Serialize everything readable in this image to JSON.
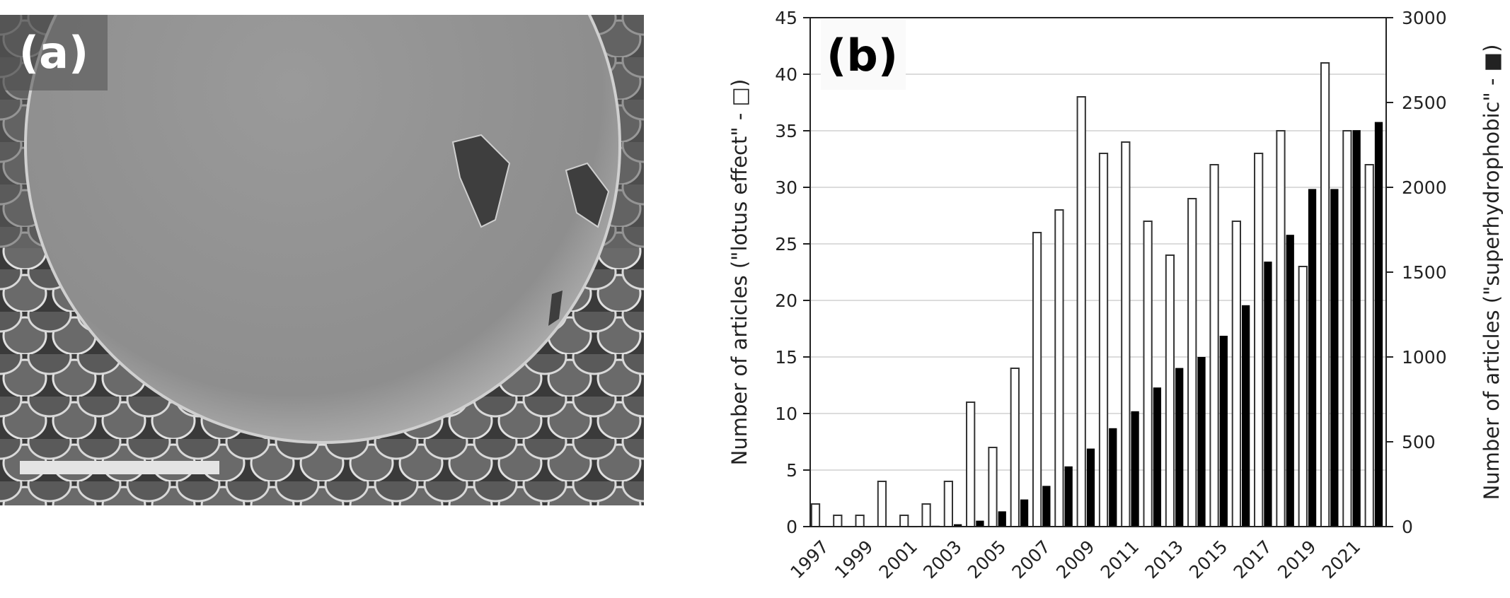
{
  "panel_a": {
    "label": "(a)",
    "description": "SEM image of a sphere resting on a micro-papillae surface",
    "scale_bar": true
  },
  "panel_b": {
    "label": "(b)"
  },
  "chart_data": {
    "type": "bar",
    "title": "",
    "panel_label": "(b)",
    "categories": [
      "1997",
      "1998",
      "1999",
      "2000",
      "2001",
      "2002",
      "2003",
      "2004",
      "2005",
      "2006",
      "2007",
      "2008",
      "2009",
      "2010",
      "2011",
      "2012",
      "2013",
      "2014",
      "2015",
      "2016",
      "2017",
      "2018",
      "2019",
      "2020",
      "2021",
      "2022"
    ],
    "x_tick_labels": [
      "1997",
      "1999",
      "2001",
      "2003",
      "2005",
      "2007",
      "2009",
      "2011",
      "2013",
      "2015",
      "2017",
      "2019",
      "2021"
    ],
    "xlabel": "",
    "ylabel": "Number of articles (\"lotus effect\" - □)",
    "y2label": "Number of articles (\"superhydrophobic\" - ■)",
    "ylim": [
      0,
      45
    ],
    "y2lim": [
      0,
      3000
    ],
    "yticks": [
      0,
      5,
      10,
      15,
      20,
      25,
      30,
      35,
      40,
      45
    ],
    "y2ticks": [
      0,
      500,
      1000,
      1500,
      2000,
      2500,
      3000
    ],
    "grid": true,
    "legend": "none (encoded in axis titles)",
    "series": [
      {
        "name": "lotus effect",
        "axis": "left",
        "style": "white fill, black outline",
        "color": "#ffffff",
        "values": [
          2,
          1,
          1,
          4,
          1,
          2,
          4,
          11,
          7,
          14,
          26,
          28,
          38,
          33,
          34,
          27,
          24,
          29,
          32,
          27,
          33,
          35,
          23,
          41,
          35,
          32
        ]
      },
      {
        "name": "superhydrophobic",
        "axis": "right",
        "style": "black fill",
        "color": "#000000",
        "values": [
          0,
          4,
          4,
          0,
          4,
          5,
          14,
          35,
          90,
          160,
          240,
          355,
          460,
          580,
          680,
          820,
          935,
          1000,
          1125,
          1305,
          1562,
          1720,
          1990,
          1990,
          2337,
          2385
        ]
      }
    ]
  }
}
